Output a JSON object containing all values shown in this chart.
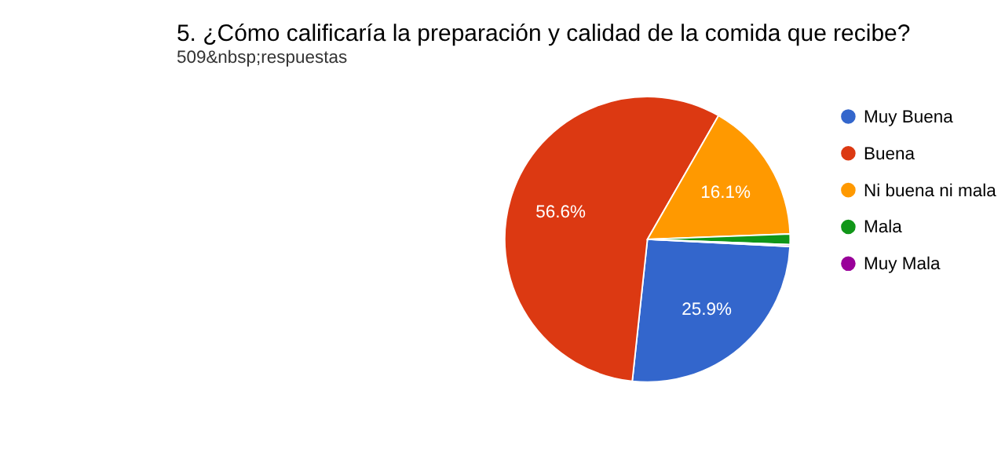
{
  "chart_data": {
    "type": "pie",
    "title": "5. ¿Cómo calificaría la preparación y calidad de la comida que recibe?",
    "subtitle": "509&nbsp;respuestas",
    "categories": [
      "Muy Buena",
      "Buena",
      "Ni buena ni mala",
      "Mala",
      "Muy Mala"
    ],
    "values": [
      25.9,
      56.6,
      16.1,
      1.2,
      0.2
    ],
    "colors": [
      "#3366cc",
      "#dc3912",
      "#ff9900",
      "#109618",
      "#990099"
    ],
    "value_labels": [
      "25.9%",
      "56.6%",
      "16.1%",
      null,
      null
    ],
    "legend": "right"
  }
}
